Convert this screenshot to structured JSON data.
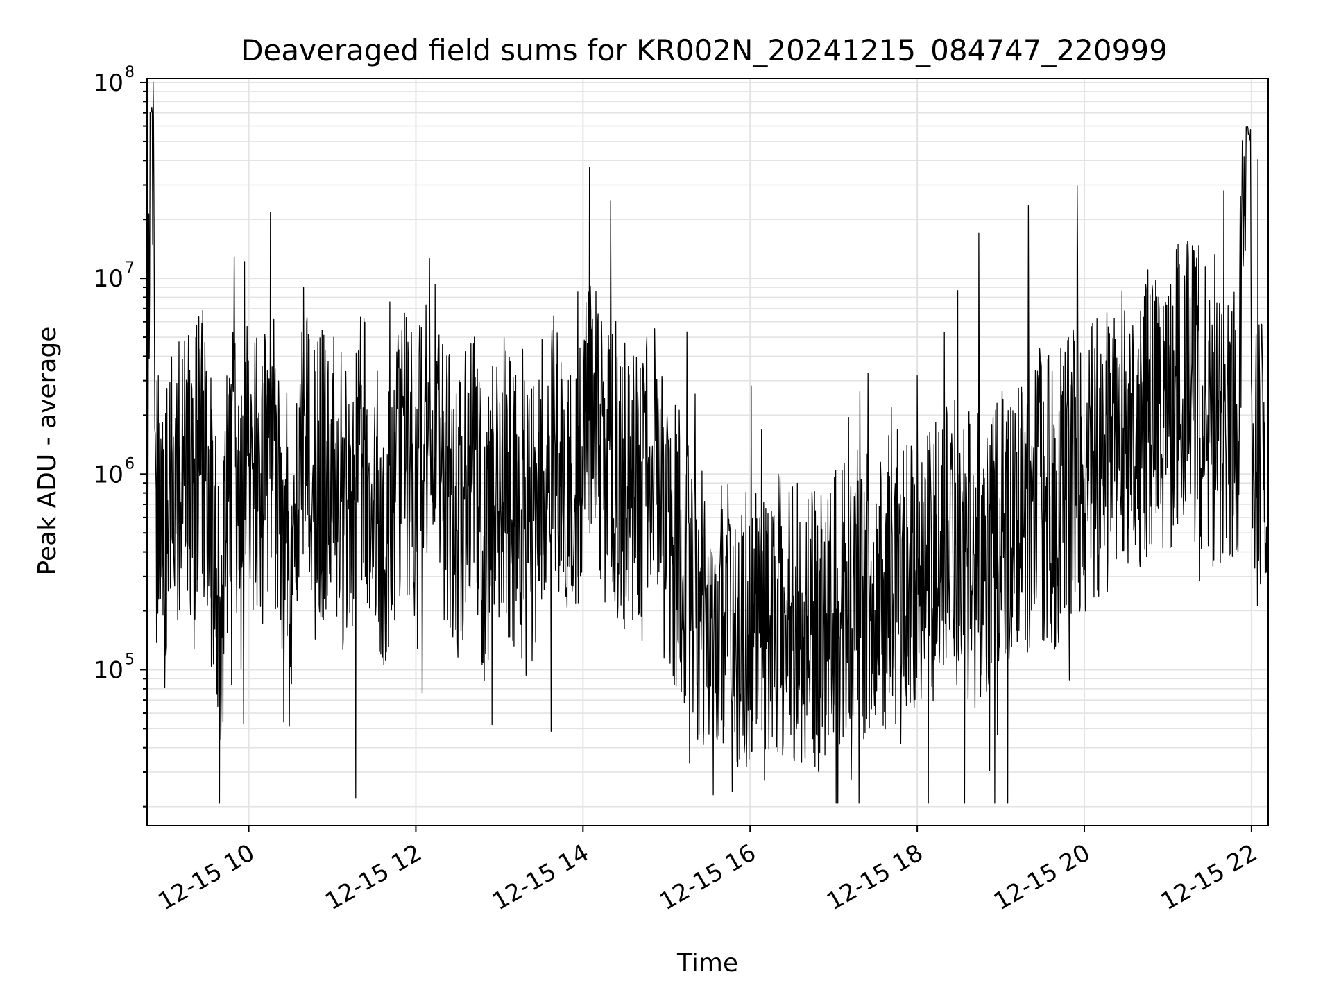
{
  "chart_data": {
    "type": "line",
    "title": "Deaveraged field sums for KR002N_20241215_084747_220999",
    "xlabel": "Time",
    "ylabel": "Peak ADU - average",
    "yscale": "log",
    "ylim": [
      16000,
      105000000
    ],
    "xlim": [
      "12-15 08:47",
      "12-15 22:12"
    ],
    "x_ticks": [
      "12-15 10",
      "12-15 12",
      "12-15 14",
      "12-15 16",
      "12-15 18",
      "12-15 20",
      "12-15 22"
    ],
    "y_ticks": [
      {
        "base": "10",
        "exp": "5",
        "value": 100000
      },
      {
        "base": "10",
        "exp": "6",
        "value": 1000000
      },
      {
        "base": "10",
        "exp": "7",
        "value": 10000000
      },
      {
        "base": "10",
        "exp": "8",
        "value": 100000000
      }
    ],
    "grid": true,
    "line_color": "#000000",
    "series": [
      {
        "x": [
          "12-15 08:47",
          "12-15 08:48",
          "12-15 08:49",
          "12-15 08:50",
          "12-15 08:51",
          "12-15 08:52",
          "12-15 08:53",
          "12-15 08:54",
          "12-15 08:55",
          "12-15 08:57",
          "12-15 09:00",
          "12-15 09:05",
          "12-15 09:10",
          "12-15 09:15",
          "12-15 09:20",
          "12-15 09:25",
          "12-15 09:30",
          "12-15 09:35",
          "12-15 09:40",
          "12-15 09:45",
          "12-15 09:50",
          "12-15 09:55",
          "12-15 10:00",
          "12-15 10:10",
          "12-15 10:15",
          "12-15 10:20",
          "12-15 10:30",
          "12-15 10:40",
          "12-15 10:50",
          "12-15 11:00",
          "12-15 11:10",
          "12-15 11:20",
          "12-15 11:30",
          "12-15 11:40",
          "12-15 11:50",
          "12-15 12:00",
          "12-15 12:10",
          "12-15 12:20",
          "12-15 12:30",
          "12-15 12:40",
          "12-15 12:50",
          "12-15 13:00",
          "12-15 13:10",
          "12-15 13:20",
          "12-15 13:30",
          "12-15 13:40",
          "12-15 13:50",
          "12-15 14:00",
          "12-15 14:10",
          "12-15 14:15",
          "12-15 14:20",
          "12-15 14:30",
          "12-15 14:40",
          "12-15 14:50",
          "12-15 15:00",
          "12-15 15:10",
          "12-15 15:15",
          "12-15 15:20",
          "12-15 15:30",
          "12-15 15:40",
          "12-15 15:50",
          "12-15 16:00",
          "12-15 16:10",
          "12-15 16:20",
          "12-15 16:30",
          "12-15 16:40",
          "12-15 16:50",
          "12-15 17:00",
          "12-15 17:10",
          "12-15 17:20",
          "12-15 17:30",
          "12-15 17:40",
          "12-15 17:50",
          "12-15 18:00",
          "12-15 18:10",
          "12-15 18:20",
          "12-15 18:30",
          "12-15 18:40",
          "12-15 18:50",
          "12-15 19:00",
          "12-15 19:10",
          "12-15 19:20",
          "12-15 19:30",
          "12-15 19:40",
          "12-15 19:50",
          "12-15 20:00",
          "12-15 20:10",
          "12-15 20:20",
          "12-15 20:30",
          "12-15 20:40",
          "12-15 20:50",
          "12-15 21:00",
          "12-15 21:10",
          "12-15 21:20",
          "12-15 21:30",
          "12-15 21:40",
          "12-15 21:50",
          "12-15 21:55",
          "12-15 21:57",
          "12-15 21:59",
          "12-15 22:00",
          "12-15 22:05",
          "12-15 22:12"
        ],
        "y": [
          900000,
          2500000,
          70000000,
          75000000,
          72000000,
          74000000,
          1500000,
          600000,
          1200000,
          800000,
          400000,
          1000000,
          500000,
          1500000,
          700000,
          2000000,
          900000,
          400000,
          200000,
          700000,
          1100000,
          500000,
          1300000,
          800000,
          1500000,
          1000000,
          400000,
          1800000,
          900000,
          1200000,
          600000,
          1400000,
          800000,
          500000,
          1600000,
          1000000,
          2500000,
          900000,
          600000,
          1200000,
          400000,
          1000000,
          700000,
          500000,
          900000,
          1300000,
          600000,
          1500000,
          1800000,
          1000000,
          1200000,
          900000,
          700000,
          1100000,
          500000,
          400000,
          300000,
          250000,
          200000,
          180000,
          150000,
          170000,
          140000,
          200000,
          160000,
          180000,
          150000,
          190000,
          220000,
          250000,
          200000,
          300000,
          250000,
          350000,
          300000,
          400000,
          450000,
          350000,
          400000,
          500000,
          600000,
          700000,
          800000,
          700000,
          1000000,
          900000,
          1300000,
          1200000,
          1800000,
          1600000,
          2500000,
          2000000,
          3000000,
          2500000,
          2000000,
          1500000,
          1800000,
          55000000,
          60000000,
          52000000,
          900000,
          1200000,
          1000000
        ]
      }
    ]
  }
}
